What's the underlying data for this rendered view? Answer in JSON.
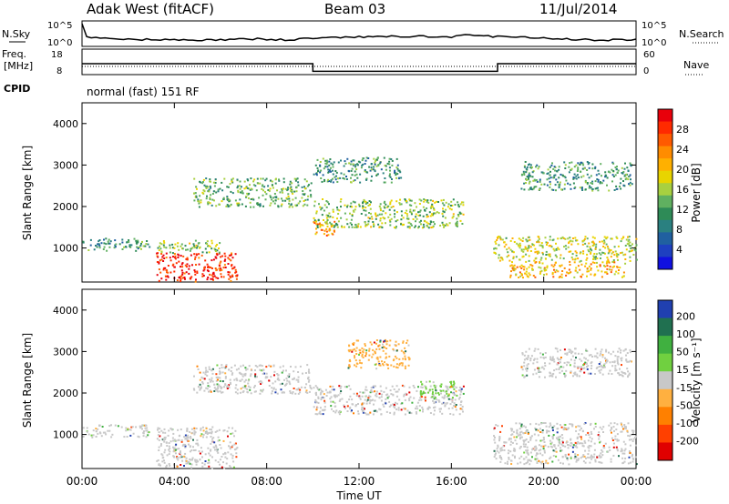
{
  "header": {
    "station": "Adak West (fitACF)",
    "beam": "Beam 03",
    "date": "11/Jul/2014"
  },
  "panels": {
    "nsky": {
      "left_label": "N.Sky",
      "right_label": "N.Search",
      "left_ticks": [
        "10^5",
        "10^0"
      ],
      "right_ticks": [
        "10^5",
        "10^0"
      ]
    },
    "freq": {
      "left_label": "Freq.",
      "left_unit": "[MHz]",
      "left_ticks": [
        "18",
        "8"
      ],
      "right_label": "Nave",
      "right_ticks": [
        "60",
        "0"
      ]
    },
    "cpid": {
      "label": "CPID",
      "value": "normal (fast) 151 RF"
    }
  },
  "colorbars": {
    "power": {
      "label": "Power [dB]",
      "ticks": [
        "28",
        "24",
        "20",
        "16",
        "12",
        "8",
        "4"
      ],
      "colors": [
        "#e8000b",
        "#ff2a00",
        "#ff5a00",
        "#ff8c00",
        "#ffb000",
        "#e8d400",
        "#a8d040",
        "#60b060",
        "#2e8b57",
        "#2a8080",
        "#2060a0",
        "#1e40c0",
        "#1010e0"
      ]
    },
    "velocity": {
      "label": "Velocity [m s⁻¹]",
      "ticks": [
        "200",
        "100",
        "50",
        "15",
        "-15",
        "-50",
        "-100",
        "-200"
      ],
      "colors": [
        "#2040b0",
        "#207050",
        "#40b040",
        "#70d040",
        "#c8c8c8",
        "#ffb040",
        "#ff8000",
        "#ff4000",
        "#e00000"
      ]
    }
  },
  "axis": {
    "ylabel": "Slant Range [km]",
    "xlabel": "Time UT",
    "y_ticks": [
      "4000",
      "3000",
      "2000",
      "1000"
    ],
    "x_ticks": [
      "00:00",
      "04:00",
      "08:00",
      "12:00",
      "16:00",
      "20:00",
      "00:00"
    ]
  },
  "chart_data": {
    "type": "heatmap",
    "x_range_hours": [
      0,
      24
    ],
    "y_range_km": [
      180,
      4500
    ],
    "frequency_mhz": [
      {
        "from_hour": 0,
        "to_hour": 10,
        "value": 13
      },
      {
        "from_hour": 10,
        "to_hour": 18,
        "value": 10
      },
      {
        "from_hour": 18,
        "to_hour": 24,
        "value": 13
      }
    ],
    "power_regions": [
      {
        "t0": 0,
        "t1": 2.9,
        "r0": 950,
        "r1": 1250,
        "db": 10
      },
      {
        "t0": 3.2,
        "t1": 6.7,
        "r0": 200,
        "r1": 900,
        "db": 28
      },
      {
        "t0": 3.2,
        "t1": 6.0,
        "r0": 900,
        "r1": 1200,
        "db": 14
      },
      {
        "t0": 4.8,
        "t1": 9.9,
        "r0": 2000,
        "r1": 2700,
        "db": 12
      },
      {
        "t0": 10,
        "t1": 11.0,
        "r0": 1300,
        "r1": 1700,
        "db": 22
      },
      {
        "t0": 10,
        "t1": 16.5,
        "r0": 1500,
        "r1": 2200,
        "db": 14
      },
      {
        "t0": 10,
        "t1": 13.8,
        "r0": 2600,
        "r1": 3200,
        "db": 10
      },
      {
        "t0": 17.8,
        "t1": 24,
        "r0": 700,
        "r1": 1300,
        "db": 16
      },
      {
        "t0": 18.5,
        "t1": 23.5,
        "r0": 300,
        "r1": 700,
        "db": 20
      },
      {
        "t0": 19,
        "t1": 23.8,
        "r0": 2400,
        "r1": 3100,
        "db": 10
      }
    ],
    "velocity_regions": [
      {
        "t0": 0,
        "t1": 2.9,
        "r0": 950,
        "r1": 1250,
        "v": 0
      },
      {
        "t0": 3.2,
        "t1": 6.7,
        "r0": 200,
        "r1": 1200,
        "v": 0
      },
      {
        "t0": 4.8,
        "t1": 9.9,
        "r0": 2000,
        "r1": 2700,
        "v": 0
      },
      {
        "t0": 10,
        "t1": 16.5,
        "r0": 1500,
        "r1": 2200,
        "v": 0
      },
      {
        "t0": 11.5,
        "t1": 14.2,
        "r0": 2600,
        "r1": 3300,
        "v": -30
      },
      {
        "t0": 14.5,
        "t1": 16.2,
        "r0": 1900,
        "r1": 2300,
        "v": 40
      },
      {
        "t0": 17.8,
        "t1": 24,
        "r0": 300,
        "r1": 1300,
        "v": 0
      },
      {
        "t0": 19,
        "t1": 23.8,
        "r0": 2400,
        "r1": 3100,
        "v": 0
      }
    ]
  }
}
